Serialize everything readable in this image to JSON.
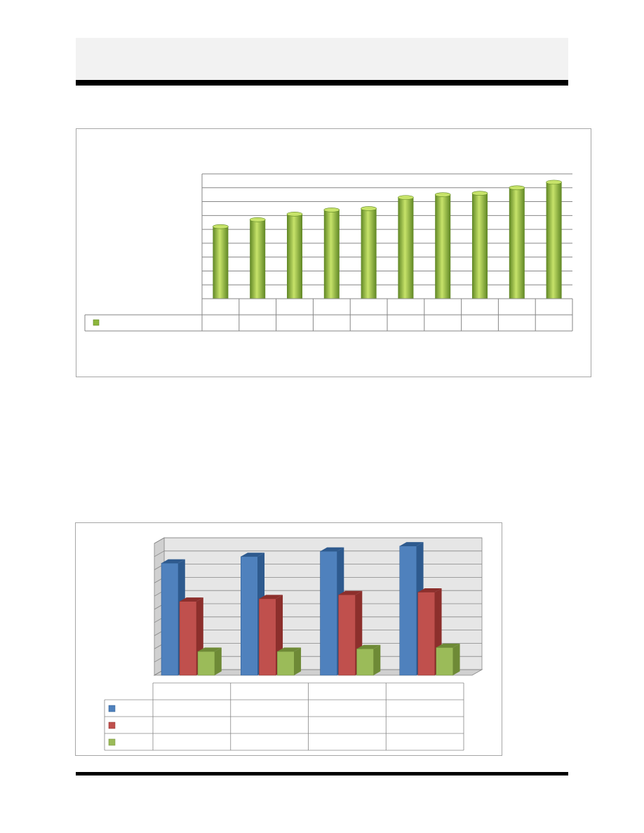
{
  "colors": {
    "green": "#8db73c",
    "green_light": "#c7e36a",
    "green_dark": "#5f8624",
    "blue": "#4f81bd",
    "blue_dark": "#2e5a8e",
    "red": "#c0504d",
    "red_dark": "#8c2f2c",
    "olive": "#9bbb59",
    "olive_dark": "#6e8a36",
    "grid": "#868686",
    "header_band": "#f2f2f2"
  },
  "chart_data": [
    {
      "type": "bar",
      "title": "",
      "xlabel": "",
      "ylabel": "",
      "categories": [
        "",
        "",
        "",
        "",
        "",
        "",
        "",
        "",
        "",
        ""
      ],
      "series": [
        {
          "name": "",
          "color": "green",
          "values": [
            5.2,
            5.7,
            6.1,
            6.4,
            6.5,
            7.3,
            7.5,
            7.6,
            8.0,
            8.4
          ]
        }
      ],
      "ylim": [
        0,
        9
      ],
      "grid": true,
      "legend": "data-table-left",
      "data_table": true
    },
    {
      "type": "bar",
      "title": "",
      "xlabel": "",
      "ylabel": "",
      "style": "3d-clustered",
      "categories": [
        "",
        "",
        "",
        ""
      ],
      "series": [
        {
          "name": "",
          "color": "blue",
          "values": [
            8.5,
            9.0,
            9.4,
            9.8
          ]
        },
        {
          "name": "",
          "color": "red",
          "values": [
            5.6,
            5.8,
            6.1,
            6.3
          ]
        },
        {
          "name": "",
          "color": "olive",
          "values": [
            1.8,
            1.8,
            2.0,
            2.1
          ]
        }
      ],
      "ylim": [
        0,
        10
      ],
      "grid": true,
      "legend": "data-table-left",
      "data_table": true
    }
  ]
}
